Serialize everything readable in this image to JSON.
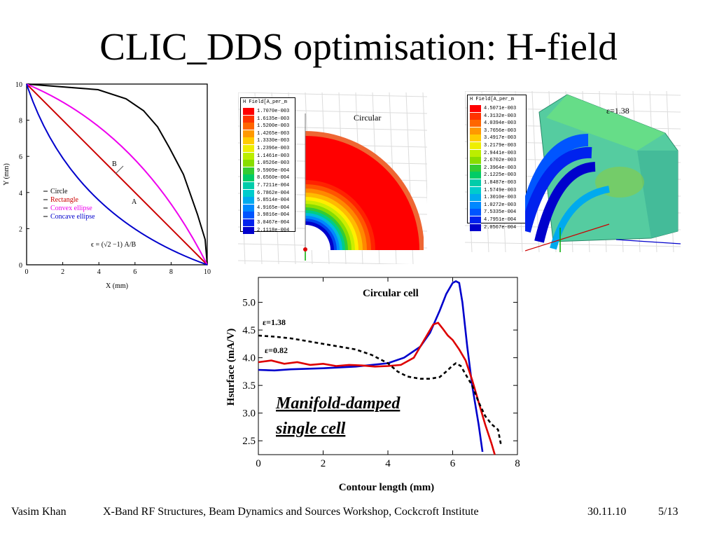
{
  "slide": {
    "title": "CLIC_DDS optimisation: H-field",
    "footer": {
      "author": "Vasim Khan",
      "event": "X-Band RF Structures, Beam Dynamics and Sources Workshop, Cockcroft Institute",
      "date": "30.11.10",
      "page": "5/13"
    }
  },
  "geometry_plot": {
    "xlabel": "X (mm)",
    "ylabel": "Y (mm)",
    "x_ticks": [
      "0",
      "2",
      "4",
      "6",
      "8",
      "10"
    ],
    "y_ticks": [
      "0",
      "2",
      "4",
      "6",
      "8",
      "10"
    ],
    "point_labels": [
      "B",
      "A"
    ],
    "legend": [
      {
        "label": "Circle",
        "color": "#000000"
      },
      {
        "label": "Rectangle",
        "color": "#cc0000"
      },
      {
        "label": "Convex ellipse",
        "color": "#ee00ee"
      },
      {
        "label": "Concave ellipse",
        "color": "#0000cc"
      }
    ],
    "formula": "ϵ = (√2 −1) A/B"
  },
  "field_map_circular": {
    "header": "H Field[A_per_m",
    "label": "Circular",
    "colors": [
      "#ff0000",
      "#ff3300",
      "#ff6600",
      "#ff9900",
      "#ffcc00",
      "#eeee00",
      "#bbee00",
      "#88dd00",
      "#33cc33",
      "#00cc66",
      "#00ccaa",
      "#00cccc",
      "#00aaee",
      "#0088ff",
      "#0055ff",
      "#0022ee",
      "#0000cc"
    ],
    "scale": [
      "1.7070e-003",
      "1.6135e-003",
      "1.5200e-003",
      "1.4265e-003",
      "1.3330e-003",
      "1.2396e-003",
      "1.1461e-003",
      "1.0526e-003",
      "9.5909e-004",
      "8.6560e-004",
      "7.7211e-004",
      "6.7862e-004",
      "5.8514e-004",
      "4.9165e-004",
      "3.9816e-004",
      "3.0467e-004",
      "2.1118e-004"
    ]
  },
  "field_map_ellipse": {
    "header": "H Field[A_per_m",
    "label": "ε=1.38",
    "colors": [
      "#ff0000",
      "#ff3300",
      "#ff6600",
      "#ff9900",
      "#ffcc00",
      "#eeee00",
      "#bbee00",
      "#88dd00",
      "#33cc33",
      "#00cc66",
      "#00ccaa",
      "#00cccc",
      "#00aaee",
      "#0088ff",
      "#0055ff",
      "#0022ee",
      "#0000cc"
    ],
    "scale": [
      "4.5071e-003",
      "4.3132e-003",
      "4.0394e-003",
      "3.7656e-003",
      "3.4917e-003",
      "3.2179e-003",
      "2.9441e-003",
      "2.6702e-003",
      "2.3964e-003",
      "2.1225e-003",
      "1.8487e-003",
      "1.5749e-003",
      "1.3010e-003",
      "1.0272e-003",
      "7.5335e-004",
      "4.7951e-004",
      "2.0567e-004"
    ]
  },
  "chart_data": {
    "type": "line",
    "title": "Circular cell",
    "xlabel": "Contour length (mm)",
    "ylabel": "Hsurface (mA/V)",
    "xlim": [
      0,
      8
    ],
    "ylim": [
      2.25,
      5.45
    ],
    "x_ticks": [
      "0",
      "2",
      "4",
      "6",
      "8"
    ],
    "y_ticks": [
      "2.5",
      "3.0",
      "3.5",
      "4.0",
      "4.5",
      "5.0"
    ],
    "grid": false,
    "annotations": [
      "ε=1.38",
      "ε=0.82",
      "Manifold-damped",
      "single cell"
    ],
    "series": [
      {
        "color": "#0000cc",
        "style": "solid",
        "x": [
          0,
          0.5,
          1,
          2,
          3,
          4,
          4.5,
          5,
          5.3,
          5.6,
          5.8,
          6.0,
          6.1,
          6.2,
          6.3,
          6.45,
          6.6,
          6.8,
          6.92
        ],
        "y": [
          3.78,
          3.77,
          3.79,
          3.81,
          3.84,
          3.9,
          4.0,
          4.2,
          4.45,
          4.85,
          5.15,
          5.35,
          5.38,
          5.35,
          5.0,
          4.2,
          3.5,
          2.8,
          2.3
        ]
      },
      {
        "color": "#dd0000",
        "style": "solid",
        "x": [
          0,
          0.4,
          0.8,
          1.2,
          1.6,
          2.0,
          2.4,
          2.8,
          3.2,
          3.6,
          4.0,
          4.4,
          4.8,
          5.1,
          5.4,
          5.55,
          5.7,
          5.85,
          6.0,
          6.2,
          6.4,
          6.6,
          6.8,
          7.0,
          7.2,
          7.3
        ],
        "y": [
          3.92,
          3.95,
          3.89,
          3.92,
          3.87,
          3.89,
          3.85,
          3.87,
          3.86,
          3.84,
          3.85,
          3.87,
          4.0,
          4.3,
          4.6,
          4.63,
          4.52,
          4.4,
          4.32,
          4.15,
          3.95,
          3.6,
          3.2,
          2.8,
          2.45,
          2.25
        ]
      },
      {
        "color": "#000000",
        "style": "dashed",
        "x": [
          0,
          0.5,
          1,
          1.5,
          2,
          2.5,
          3,
          3.5,
          4,
          4.3,
          4.6,
          5.0,
          5.3,
          5.6,
          5.8,
          6.0,
          6.1,
          6.25,
          6.4,
          6.6,
          6.8,
          7.0,
          7.2,
          7.4,
          7.5
        ],
        "y": [
          4.4,
          4.38,
          4.35,
          4.3,
          4.25,
          4.2,
          4.15,
          4.05,
          3.9,
          3.75,
          3.66,
          3.62,
          3.62,
          3.65,
          3.75,
          3.86,
          3.9,
          3.85,
          3.7,
          3.5,
          3.2,
          2.95,
          2.8,
          2.7,
          2.4
        ]
      }
    ]
  }
}
